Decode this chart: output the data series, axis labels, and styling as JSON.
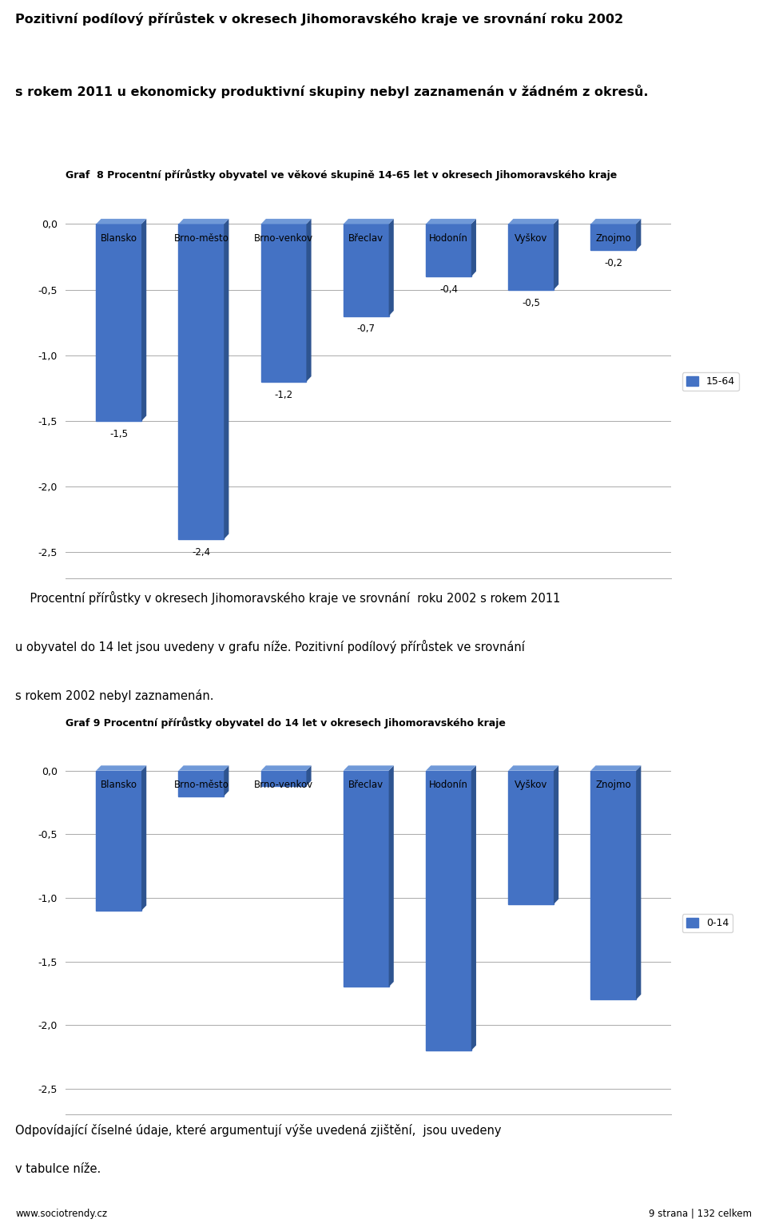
{
  "intro_line1": "Pozitivní podílový přírůstek v okresech Jihomoravského kraje ve srovnání roku 2002",
  "intro_line2": "s rokem 2011 u ekonomicky produktivní skupiny nebyl zaznamenán v žádném z okresů.",
  "chart1_title": "Graf  8 Procentní přírůstky obyvatel ve věkové skupině 14-65 let v okresech Jihomoravského kraje",
  "chart1_legend": "15-64",
  "chart1_categories": [
    "Blansko",
    "Brno-město",
    "Brno-venkov",
    "Břeclav",
    "Hodonín",
    "Vyškov",
    "Znojmo"
  ],
  "chart1_values": [
    -1.5,
    -2.4,
    -1.2,
    -0.7,
    -0.4,
    -0.5,
    -0.2
  ],
  "chart1_val_labels": [
    "-1,5",
    "-2,4",
    "-1,2",
    "-0,7",
    "-0,4",
    "-0,5",
    "-0,2"
  ],
  "chart1_ylim_low": -2.7,
  "chart1_ylim_high": 0.3,
  "chart1_yticks": [
    0.0,
    -0.5,
    -1.0,
    -1.5,
    -2.0,
    -2.5
  ],
  "mid_line1": "    Procentní přírůstky v okresech Jihomoravského kraje ve srovnání  roku 2002 s rokem 2011",
  "mid_line2": "u obyvatel do 14 let jsou uvedeny v grafu níže. Pozitivní podílový přírůstek ve srovnání",
  "mid_line3": "s rokem 2002 nebyl zaznamenán.",
  "chart2_title": "Graf 9 Procentní přírůstky obyvatel do 14 let v okresech Jihomoravského kraje",
  "chart2_legend": "0-14",
  "chart2_categories": [
    "Blansko",
    "Brno-město",
    "Brno-venkov",
    "Břeclav",
    "Hodonín",
    "Vyškov",
    "Znojmo"
  ],
  "chart2_values": [
    -1.1,
    -0.2,
    -0.12,
    -1.7,
    -2.2,
    -1.05,
    -1.8
  ],
  "chart2_ylim_low": -2.7,
  "chart2_ylim_high": 0.3,
  "chart2_yticks": [
    0.0,
    -0.5,
    -1.0,
    -1.5,
    -2.0,
    -2.5
  ],
  "bar_color": "#4472C4",
  "bar_side_color": "#2E5490",
  "bar_top_color": "#7099D8",
  "footer_left": "www.sociotrendy.cz",
  "footer_right": "9 strana | 132 celkem",
  "bot_line1": "Odpovídající číselné údaje, které argumentují výše uvedená zjištění,  jsou uvedeny",
  "bot_line2": "v tabulce níže."
}
